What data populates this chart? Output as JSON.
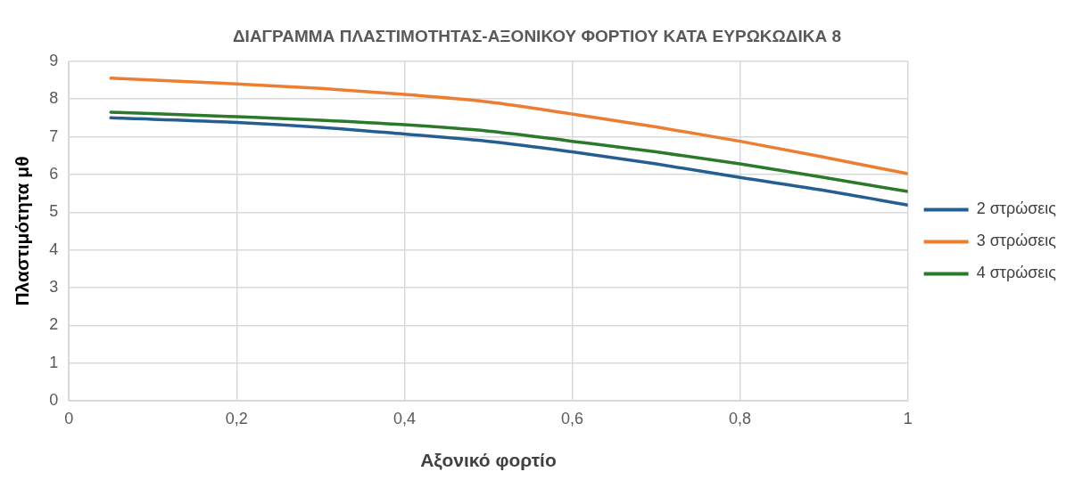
{
  "chart_data": {
    "type": "line",
    "title": "ΔΙΑΓΡΑΜΜΑ ΠΛΑΣΤΙΜΟΤΗΤΑΣ-ΑΞΟΝΙΚΟΥ ΦΟΡΤΙΟΥ ΚΑΤΑ ΕΥΡΩΚΩΔΙΚΑ 8",
    "xlabel": "Αξονικό φορτίο",
    "ylabel": "Πλαστιμότητα μθ",
    "x": [
      0.05,
      0.2,
      0.3,
      0.4,
      0.5,
      0.6,
      0.7,
      0.8,
      0.9,
      1
    ],
    "series": [
      {
        "name": "2 στρώσεις",
        "color": "#255e91",
        "values": [
          7.5,
          7.38,
          7.25,
          7.07,
          6.88,
          6.6,
          6.28,
          5.92,
          5.58,
          5.19
        ]
      },
      {
        "name": "3 στρώσεις",
        "color": "#ed7d31",
        "values": [
          8.55,
          8.4,
          8.28,
          8.12,
          7.92,
          7.6,
          7.26,
          6.88,
          6.46,
          6.02
        ]
      },
      {
        "name": "4 στρώσεις",
        "color": "#2a7a2a",
        "values": [
          7.65,
          7.53,
          7.44,
          7.32,
          7.15,
          6.88,
          6.6,
          6.28,
          5.92,
          5.55
        ]
      }
    ],
    "xlim": [
      0,
      1
    ],
    "xticks": [
      0,
      {
        "value": 0.2,
        "label": "0,2"
      },
      {
        "value": 0.4,
        "label": "0,4"
      },
      {
        "value": 0.6,
        "label": "0,6"
      },
      {
        "value": 0.8,
        "label": "0,8"
      },
      1
    ],
    "ylim": [
      0,
      9
    ],
    "yticks": [
      0,
      1,
      2,
      3,
      4,
      5,
      6,
      7,
      8,
      9
    ],
    "grid": true,
    "legend": "right",
    "marker": "none",
    "line_style": "solid"
  }
}
